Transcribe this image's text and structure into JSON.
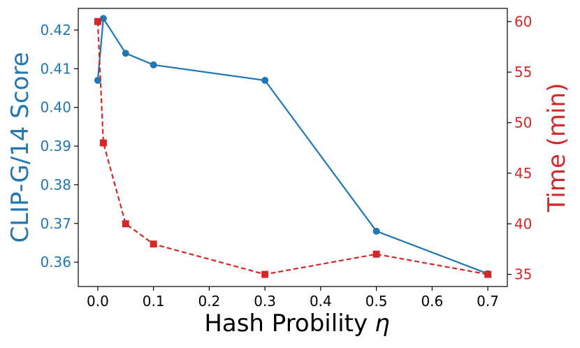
{
  "chart_data": {
    "type": "line",
    "title": "",
    "xlabel": "Hash Probility",
    "xlabel_symbol": "η",
    "xlim": [
      -0.035,
      0.735
    ],
    "xticks": [
      0.0,
      0.1,
      0.2,
      0.3,
      0.4,
      0.5,
      0.6,
      0.7
    ],
    "xtick_labels": [
      "0.0",
      "0.1",
      "0.2",
      "0.3",
      "0.4",
      "0.5",
      "0.6",
      "0.7"
    ],
    "grid": false,
    "legend": "none",
    "y_left": {
      "label": "CLIP-G/14 Score",
      "color": "#1f77b4",
      "ylim": [
        0.3537,
        0.4256
      ],
      "ticks": [
        0.36,
        0.37,
        0.38,
        0.39,
        0.4,
        0.41,
        0.42
      ],
      "tick_labels": [
        "0.36",
        "0.37",
        "0.38",
        "0.39",
        "0.40",
        "0.41",
        "0.42"
      ]
    },
    "y_right": {
      "label": "Time (min)",
      "color": "#d62728",
      "ylim": [
        33.8,
        61.3
      ],
      "ticks": [
        35,
        40,
        45,
        50,
        55,
        60
      ],
      "tick_labels": [
        "35",
        "40",
        "45",
        "50",
        "55",
        "60"
      ]
    },
    "series": [
      {
        "axis": "left",
        "color": "#1f77b4",
        "style": "solid",
        "marker": "circle",
        "x": [
          0.0,
          0.01,
          0.05,
          0.1,
          0.3,
          0.5,
          0.7
        ],
        "y": [
          0.407,
          0.423,
          0.414,
          0.411,
          0.407,
          0.368,
          0.357
        ]
      },
      {
        "axis": "right",
        "color": "#d62728",
        "style": "dashed",
        "marker": "square",
        "x": [
          0.0,
          0.01,
          0.05,
          0.1,
          0.3,
          0.5,
          0.7
        ],
        "y": [
          60,
          48,
          40,
          38,
          35,
          37,
          35
        ]
      }
    ]
  }
}
